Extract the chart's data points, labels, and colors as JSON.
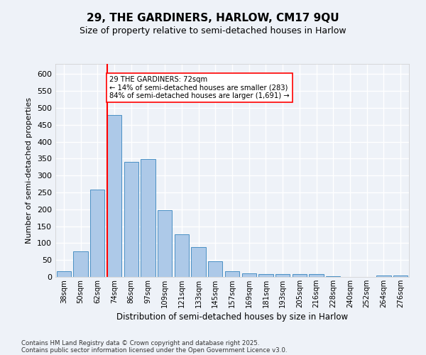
{
  "title1": "29, THE GARDINERS, HARLOW, CM17 9QU",
  "title2": "Size of property relative to semi-detached houses in Harlow",
  "xlabel": "Distribution of semi-detached houses by size in Harlow",
  "ylabel": "Number of semi-detached properties",
  "categories": [
    "38sqm",
    "50sqm",
    "62sqm",
    "74sqm",
    "86sqm",
    "97sqm",
    "109sqm",
    "121sqm",
    "133sqm",
    "145sqm",
    "157sqm",
    "169sqm",
    "181sqm",
    "193sqm",
    "205sqm",
    "216sqm",
    "228sqm",
    "240sqm",
    "252sqm",
    "264sqm",
    "276sqm"
  ],
  "values": [
    17,
    75,
    258,
    478,
    340,
    348,
    197,
    127,
    89,
    46,
    17,
    10,
    8,
    8,
    9,
    8,
    2,
    0,
    0,
    5,
    5
  ],
  "bar_color": "#adc9e8",
  "bar_edge_color": "#4a90c4",
  "vline_color": "red",
  "vline_x_index": 3,
  "annotation_text": "29 THE GARDINERS: 72sqm\n← 14% of semi-detached houses are smaller (283)\n84% of semi-detached houses are larger (1,691) →",
  "annotation_box_color": "white",
  "annotation_box_edge": "red",
  "ylim": [
    0,
    630
  ],
  "yticks": [
    0,
    50,
    100,
    150,
    200,
    250,
    300,
    350,
    400,
    450,
    500,
    550,
    600
  ],
  "footer1": "Contains HM Land Registry data © Crown copyright and database right 2025.",
  "footer2": "Contains public sector information licensed under the Open Government Licence v3.0.",
  "background_color": "#eef2f8",
  "grid_color": "white"
}
